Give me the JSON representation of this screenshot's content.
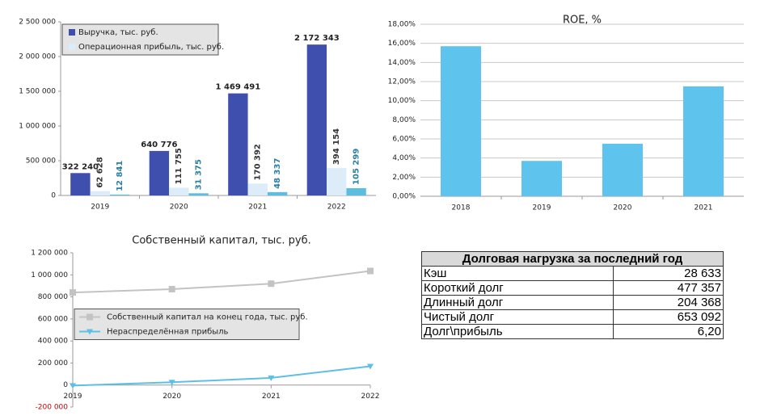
{
  "chart_data": [
    {
      "type": "bar",
      "categories": [
        "2019",
        "2020",
        "2021",
        "2022"
      ],
      "series": [
        {
          "name": "Выручка, тыс. руб.",
          "color": "#3f4fae",
          "values": [
            322240,
            640776,
            1469491,
            2172343
          ],
          "value_labels": [
            "322 240",
            "640 776",
            "1 469 491",
            "2 172 343"
          ]
        },
        {
          "name": "Операционная прибыль, тыс. руб.",
          "color": "#dcedf9",
          "values": [
            62628,
            111755,
            170392,
            394154
          ],
          "value_labels": [
            "62 628",
            "111 755",
            "170 392",
            "394 154"
          ]
        },
        {
          "color": "#5dbde1",
          "values": [
            12841,
            31375,
            48337,
            105299
          ],
          "value_labels": [
            "12 841",
            "31 375",
            "48 337",
            "105 299"
          ]
        }
      ],
      "ylim": [
        0,
        2500000
      ],
      "yticks": [
        0,
        {
          "value": 500000,
          "label": "500 000"
        },
        {
          "value": 1000000,
          "label": "1 000 000"
        },
        {
          "value": 1500000,
          "label": "1 500 000"
        },
        {
          "value": 2000000,
          "label": "2 000 000"
        },
        {
          "value": 2500000,
          "label": "2 500 000"
        }
      ],
      "grid": false,
      "legend": "top-left"
    },
    {
      "type": "bar",
      "title": "ROE, %",
      "categories": [
        "2018",
        "2019",
        "2020",
        "2021"
      ],
      "values": [
        15.7,
        3.7,
        5.5,
        11.5
      ],
      "color": "#5ec4ee",
      "ylim": [
        0,
        18
      ],
      "yticks": [
        {
          "value": 0,
          "label": "0,00%"
        },
        {
          "value": 2,
          "label": "2,00%"
        },
        {
          "value": 4,
          "label": "4,00%"
        },
        {
          "value": 6,
          "label": "6,00%"
        },
        {
          "value": 8,
          "label": "8,00%"
        },
        {
          "value": 10,
          "label": "10,00%"
        },
        {
          "value": 12,
          "label": "12,00%"
        },
        {
          "value": 14,
          "label": "14,00%"
        },
        {
          "value": 16,
          "label": "16,00%"
        },
        {
          "value": 18,
          "label": "18,00%"
        }
      ],
      "grid": true
    },
    {
      "type": "line",
      "title": "Собственный капитал, тыс. руб.",
      "x": [
        2019,
        2020,
        2021,
        2022
      ],
      "xlim": [
        2019,
        2022
      ],
      "xticks": [
        2019,
        2020,
        2021,
        2022
      ],
      "series": [
        {
          "name": "Собственный капитал на конец года, тыс. руб.",
          "color": "#c3c3c3",
          "marker": "square",
          "values": [
            840000,
            870000,
            920000,
            1035000
          ]
        },
        {
          "name": "Нераспределённая прибыль",
          "color": "#5ebfe6",
          "marker": "triangle-down",
          "values": [
            -5000,
            25000,
            65000,
            170000
          ]
        }
      ],
      "ylim": [
        -200000,
        1200000
      ],
      "yticks": [
        {
          "value": -200000,
          "label": "-200 000"
        },
        0,
        {
          "value": 200000,
          "label": "200 000"
        },
        {
          "value": 400000,
          "label": "400 000"
        },
        {
          "value": 600000,
          "label": "600 000"
        },
        {
          "value": 800000,
          "label": "800 000"
        },
        {
          "value": 1000000,
          "label": "1 000 000"
        },
        {
          "value": 1200000,
          "label": "1 200 000"
        }
      ],
      "negative_tick_color": "#cc0000",
      "grid": false,
      "legend": "center-left"
    }
  ],
  "table": {
    "title": "Долговая нагрузка за последний год",
    "rows": [
      [
        "Кэш",
        "28 633"
      ],
      [
        "Короткий долг",
        "477 357"
      ],
      [
        "Длинный долг",
        "204 368"
      ],
      [
        "Чистый долг",
        "653 092"
      ],
      [
        "Долг\\прибыль",
        "6,20"
      ]
    ]
  }
}
